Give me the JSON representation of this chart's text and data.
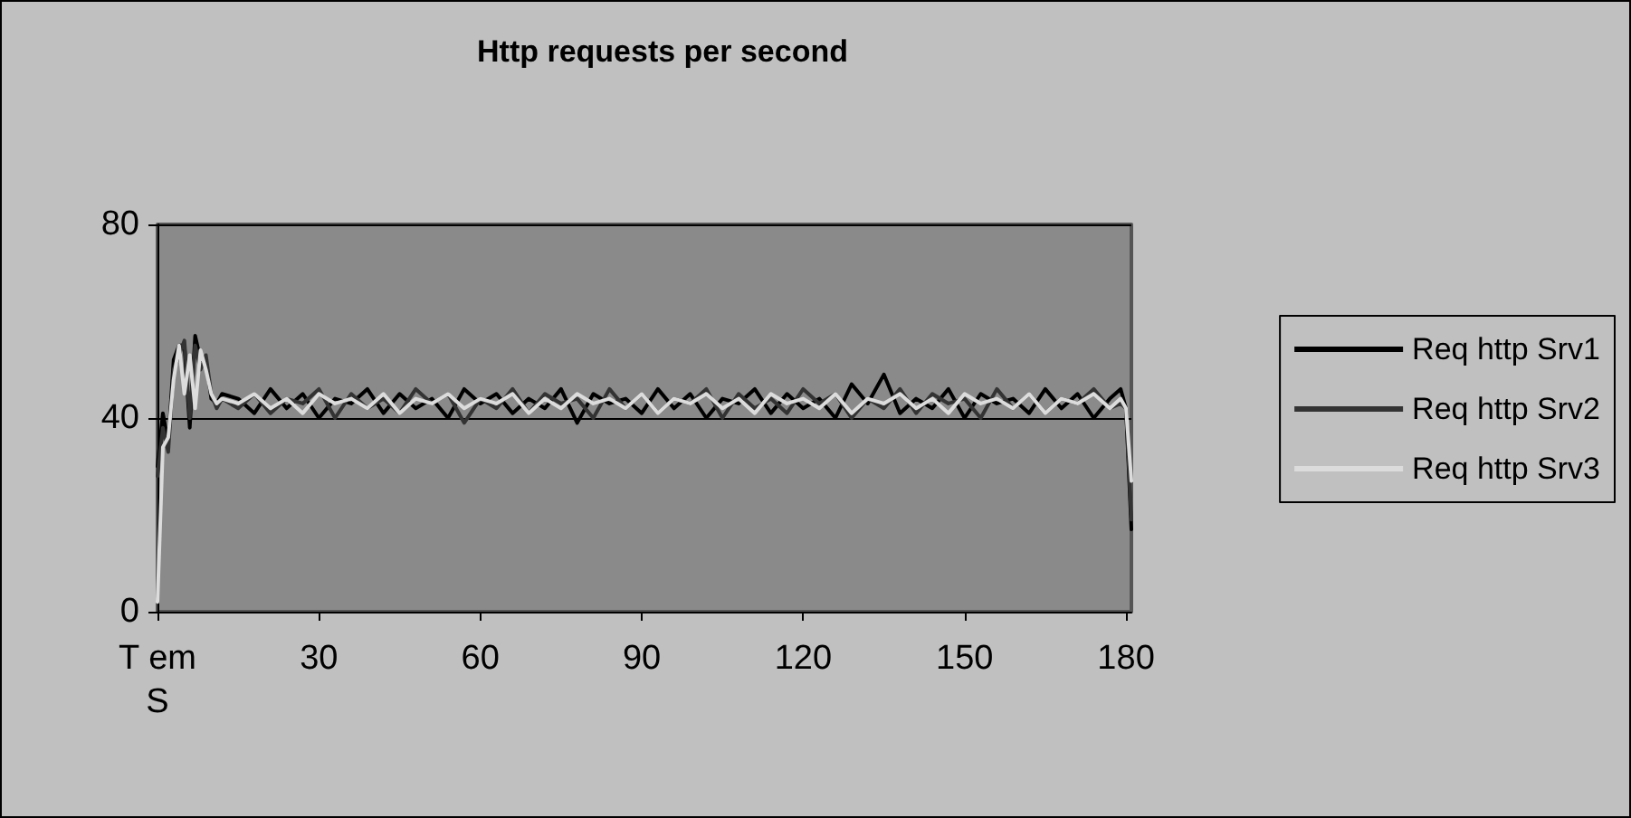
{
  "chart_data": {
    "type": "line",
    "title": "Http requests per second",
    "x": [
      0,
      1,
      2,
      3,
      4,
      5,
      6,
      7,
      8,
      9,
      10,
      11,
      12,
      15,
      18,
      21,
      24,
      27,
      30,
      33,
      36,
      39,
      42,
      45,
      48,
      51,
      54,
      57,
      60,
      63,
      66,
      69,
      72,
      75,
      78,
      81,
      84,
      87,
      90,
      93,
      96,
      99,
      102,
      105,
      108,
      111,
      114,
      117,
      120,
      123,
      126,
      129,
      132,
      135,
      138,
      141,
      144,
      147,
      150,
      153,
      156,
      159,
      162,
      165,
      168,
      171,
      174,
      177,
      179,
      180,
      181
    ],
    "xlim": [
      0,
      181
    ],
    "xticks": [
      {
        "value": 0,
        "label": "T em S"
      },
      30,
      60,
      90,
      120,
      150,
      180
    ],
    "ylim": [
      0,
      80
    ],
    "yticks": [
      0,
      40,
      80
    ],
    "grid": "y",
    "legend": "right",
    "marker": "none",
    "line_style": "solid",
    "series": [
      {
        "name": "Req http Srv1",
        "color": "#000000",
        "values": [
          30,
          41,
          35,
          52,
          55,
          55,
          38,
          57,
          52,
          52,
          44,
          43,
          45,
          44,
          41,
          46,
          42,
          45,
          40,
          44,
          43,
          46,
          41,
          45,
          42,
          44,
          40,
          46,
          43,
          45,
          41,
          44,
          42,
          46,
          39,
          45,
          43,
          44,
          41,
          46,
          42,
          45,
          40,
          44,
          43,
          46,
          41,
          45,
          42,
          44,
          40,
          47,
          43,
          49,
          41,
          44,
          42,
          46,
          40,
          45,
          43,
          44,
          41,
          46,
          42,
          45,
          40,
          44,
          46,
          42,
          17
        ]
      },
      {
        "name": "Req http Srv2",
        "color": "#333333",
        "values": [
          28,
          38,
          33,
          50,
          53,
          56,
          40,
          55,
          50,
          53,
          45,
          42,
          44,
          42,
          45,
          41,
          44,
          43,
          46,
          40,
          45,
          42,
          44,
          41,
          46,
          43,
          45,
          39,
          44,
          42,
          46,
          41,
          45,
          43,
          44,
          40,
          46,
          42,
          45,
          41,
          44,
          43,
          46,
          40,
          45,
          42,
          44,
          41,
          46,
          43,
          45,
          40,
          44,
          42,
          46,
          41,
          45,
          43,
          44,
          40,
          46,
          42,
          45,
          41,
          44,
          43,
          46,
          42,
          43,
          42,
          19
        ]
      },
      {
        "name": "Req http Srv3",
        "color": "#dcdcdc",
        "values": [
          2,
          34,
          36,
          48,
          55,
          45,
          53,
          42,
          54,
          50,
          45,
          43,
          44,
          43,
          45,
          42,
          44,
          41,
          45,
          43,
          44,
          42,
          45,
          41,
          44,
          43,
          45,
          42,
          44,
          43,
          45,
          41,
          44,
          42,
          45,
          43,
          44,
          42,
          45,
          41,
          44,
          43,
          45,
          42,
          44,
          41,
          45,
          43,
          44,
          42,
          45,
          41,
          44,
          43,
          45,
          42,
          44,
          41,
          45,
          43,
          44,
          42,
          45,
          41,
          44,
          43,
          45,
          42,
          44,
          42,
          27
        ]
      }
    ]
  }
}
